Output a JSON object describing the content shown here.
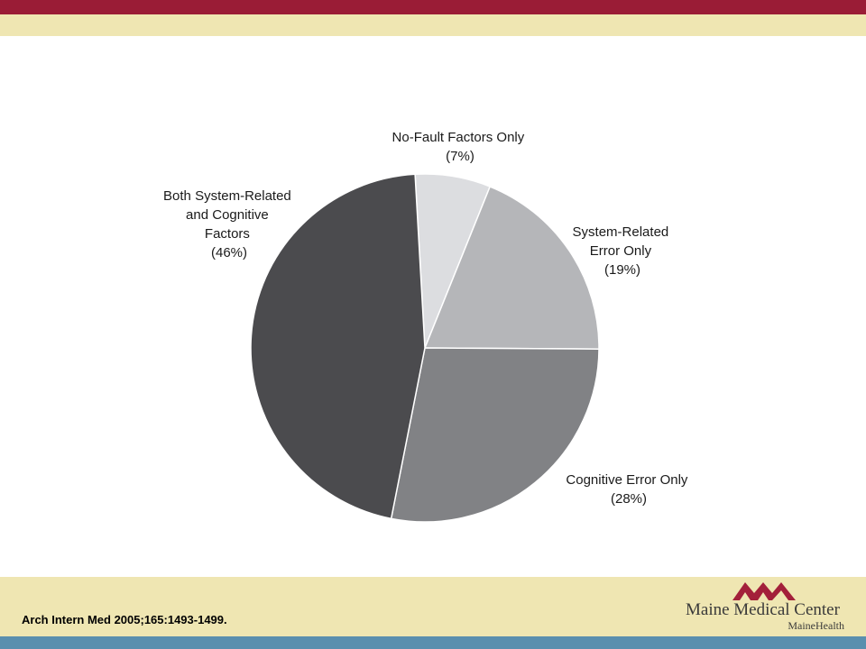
{
  "colors": {
    "top_bar": "#9a1c36",
    "band": "#efe6b2",
    "bottom_bar": "#5a8fae",
    "logo_mark": "#a3203a"
  },
  "chart_data": {
    "type": "pie",
    "slices": [
      {
        "label_lines": [
          "No-Fault Factors Only",
          "(7%)"
        ],
        "value": 7,
        "color": "#dcdde0"
      },
      {
        "label_lines": [
          "System-Related",
          "Error Only",
          "(19%)"
        ],
        "value": 19,
        "color": "#b5b6b9"
      },
      {
        "label_lines": [
          "Cognitive Error Only",
          "(28%)"
        ],
        "value": 28,
        "color": "#818285"
      },
      {
        "label_lines": [
          "Both System-Related",
          "and Cognitive",
          "Factors",
          "(46%)"
        ],
        "value": 46,
        "color": "#4b4b4e"
      }
    ]
  },
  "footer": {
    "citation": "Arch Intern Med 2005;165:1493-1499.",
    "logo_name": "Maine Medical Center",
    "logo_sub": "MaineHealth"
  }
}
